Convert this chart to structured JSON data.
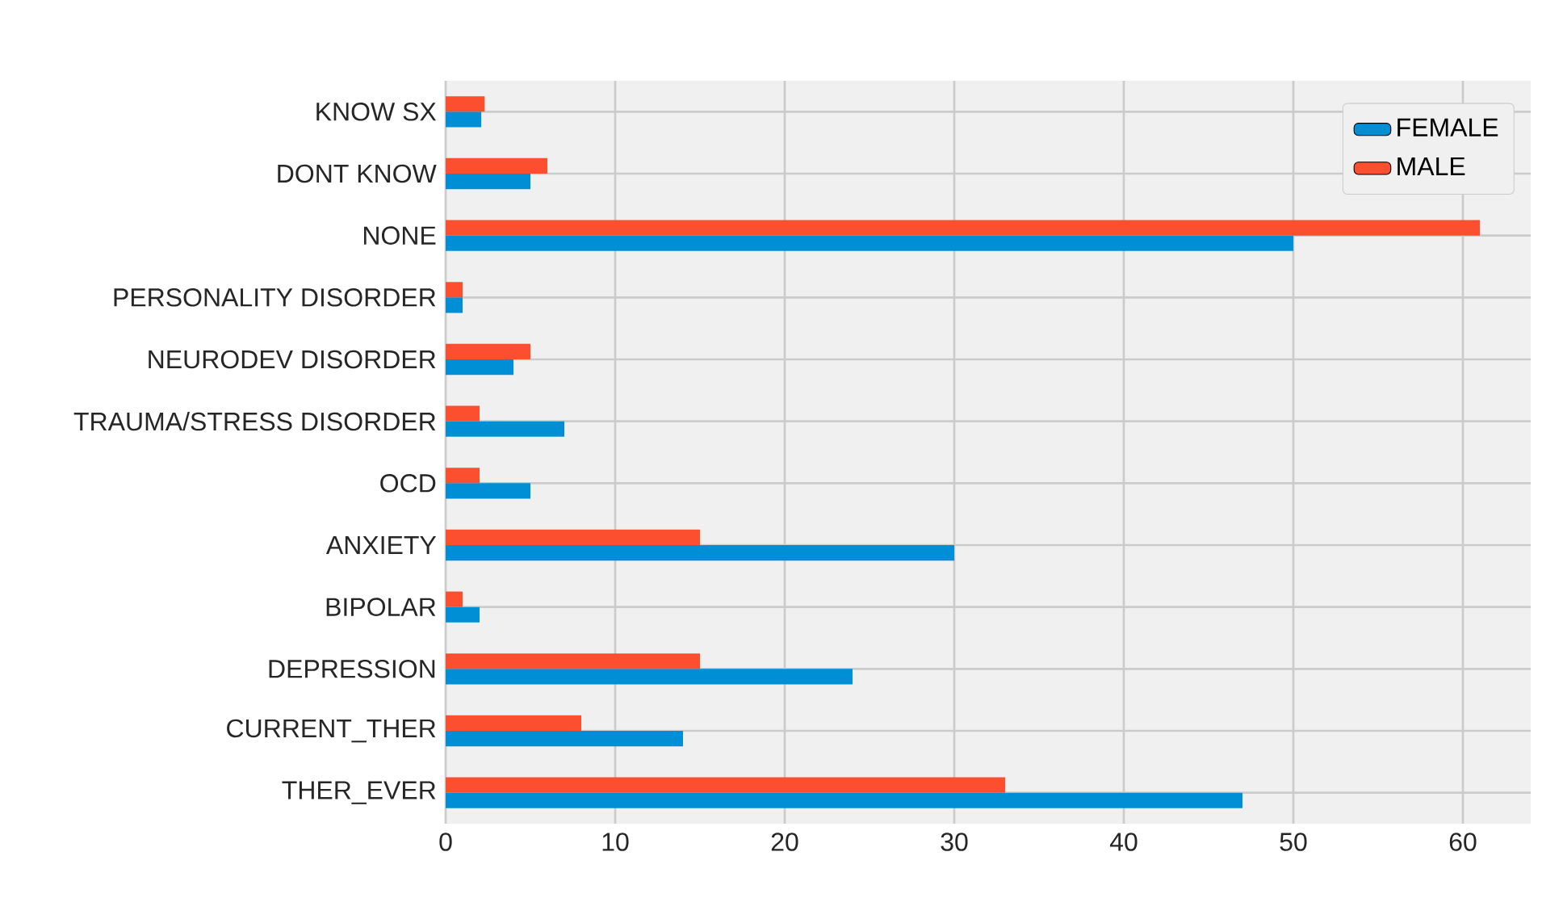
{
  "chart_data": {
    "type": "bar",
    "orientation": "horizontal",
    "categories": [
      "KNOW SX",
      "DONT KNOW",
      "NONE",
      "PERSONALITY DISORDER",
      "NEURODEV DISORDER",
      "TRAUMA/STRESS DISORDER",
      "OCD",
      "ANXIETY",
      "BIPOLAR",
      "DEPRESSION",
      "CURRENT_THER",
      "THER_EVER"
    ],
    "series": [
      {
        "name": "FEMALE",
        "color": "#008fd5",
        "values": [
          2.1,
          5,
          50,
          1,
          4,
          7,
          5,
          30,
          2,
          24,
          14,
          47
        ]
      },
      {
        "name": "MALE",
        "color": "#fc4f30",
        "values": [
          2.3,
          6,
          61,
          1,
          5,
          2,
          2,
          15,
          1,
          15,
          8,
          33
        ]
      }
    ],
    "xlim": [
      0,
      64
    ],
    "xticks": [
      0,
      10,
      20,
      30,
      40,
      50,
      60
    ],
    "grid": true,
    "legend": "top right"
  }
}
